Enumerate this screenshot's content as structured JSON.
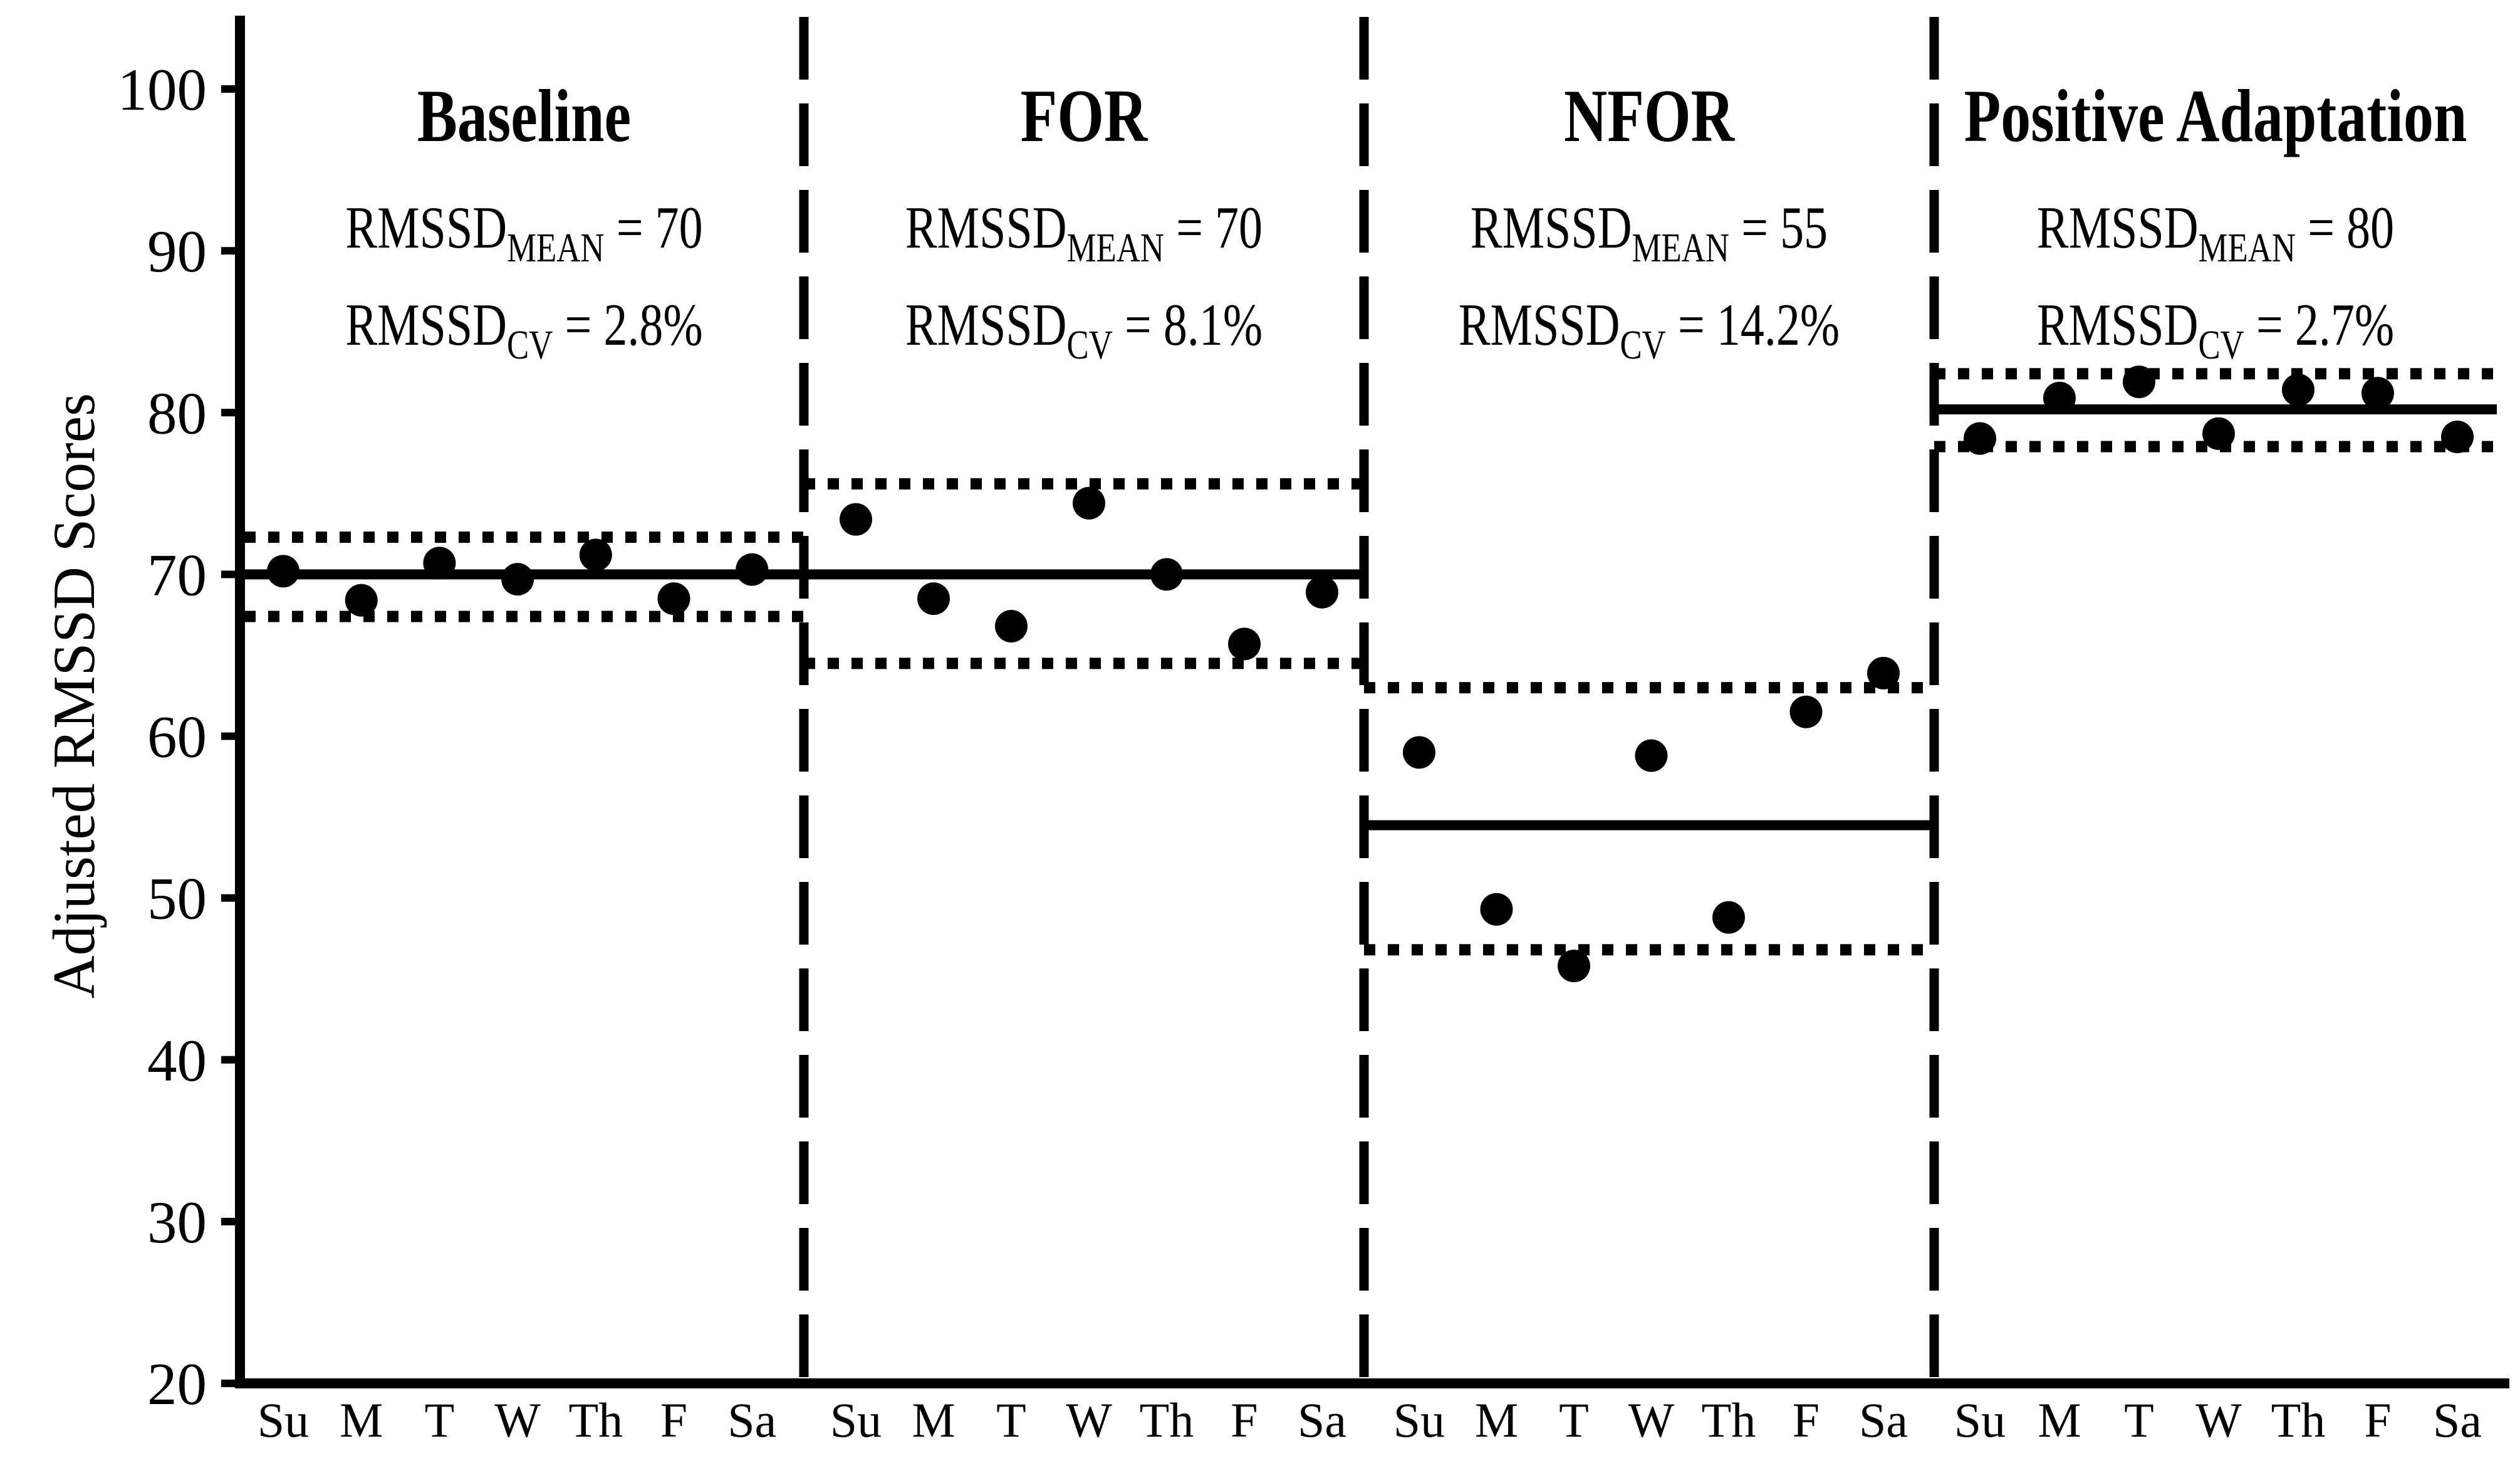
{
  "figure": {
    "background": "#ffffff",
    "ink": "#000000"
  },
  "chart_data": {
    "type": "scatter",
    "title": "",
    "xlabel": "",
    "ylabel": "Adjusted RMSSD Scores",
    "ylim": [
      20,
      105
    ],
    "y_ticks": [
      20,
      30,
      40,
      50,
      60,
      70,
      80,
      90,
      100
    ],
    "grid": false,
    "legend": "none",
    "x_day_labels": [
      "Su",
      "M",
      "T",
      "W",
      "Th",
      "F",
      "Sa"
    ],
    "panels": [
      {
        "title": "Baseline",
        "stat_base": "RMSSD",
        "mean_sub": "MEAN",
        "mean_rest": "= 70",
        "cv_sub": "CV",
        "cv_rest": "= 2.8%",
        "rmssd_mean": 70,
        "rmssd_cv_pct": 2.8,
        "mean_line": 70.0,
        "band_upper": 72.3,
        "band_lower": 67.4,
        "days": [
          "Su",
          "M",
          "T",
          "W",
          "Th",
          "F",
          "Sa"
        ],
        "values": [
          70.2,
          68.4,
          70.7,
          69.7,
          71.2,
          68.5,
          70.3
        ]
      },
      {
        "title": "FOR",
        "stat_base": "RMSSD",
        "mean_sub": "MEAN",
        "mean_rest": "= 70",
        "cv_sub": "CV",
        "cv_rest": "= 8.1%",
        "rmssd_mean": 70,
        "rmssd_cv_pct": 8.1,
        "mean_line": 70.0,
        "band_upper": 75.6,
        "band_lower": 64.5,
        "days": [
          "Su",
          "M",
          "T",
          "W",
          "Th",
          "F",
          "Sa"
        ],
        "values": [
          73.4,
          68.5,
          66.8,
          74.4,
          70.0,
          65.7,
          68.9
        ]
      },
      {
        "title": "NFOR",
        "stat_base": "RMSSD",
        "mean_sub": "MEAN",
        "mean_rest": "= 55",
        "cv_sub": "CV",
        "cv_rest": "= 14.2%",
        "rmssd_mean": 55,
        "rmssd_cv_pct": 14.2,
        "mean_line": 54.5,
        "band_upper": 63.0,
        "band_lower": 46.8,
        "days": [
          "Su",
          "M",
          "T",
          "W",
          "Th",
          "F",
          "Sa"
        ],
        "values": [
          59.0,
          49.3,
          45.8,
          58.8,
          48.8,
          61.5,
          63.9
        ]
      },
      {
        "title": "Positive Adaptation",
        "stat_base": "RMSSD",
        "mean_sub": "MEAN",
        "mean_rest": "= 80",
        "cv_sub": "CV",
        "cv_rest": "= 2.7%",
        "rmssd_mean": 80,
        "rmssd_cv_pct": 2.7,
        "mean_line": 80.2,
        "band_upper": 82.4,
        "band_lower": 77.9,
        "days": [
          "Su",
          "M",
          "T",
          "W",
          "Th",
          "F",
          "Sa"
        ],
        "values": [
          78.4,
          80.9,
          81.9,
          78.7,
          81.4,
          81.2,
          78.5
        ]
      }
    ]
  }
}
